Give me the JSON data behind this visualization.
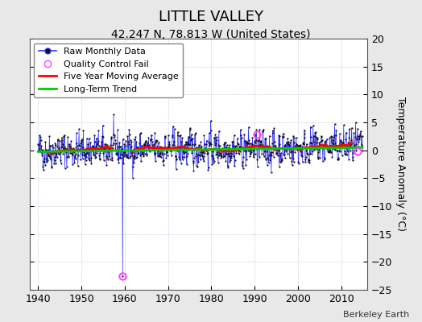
{
  "title": "LITTLE VALLEY",
  "subtitle": "42.247 N, 78.813 W (United States)",
  "ylabel": "Temperature Anomaly (°C)",
  "attribution": "Berkeley Earth",
  "xlim": [
    1938,
    2016
  ],
  "ylim": [
    -25,
    20
  ],
  "yticks": [
    -25,
    -20,
    -15,
    -10,
    -5,
    0,
    5,
    10,
    15,
    20
  ],
  "xticks": [
    1940,
    1950,
    1960,
    1970,
    1980,
    1990,
    2000,
    2010
  ],
  "fig_bg_color": "#e8e8e8",
  "plot_bg_color": "#ffffff",
  "grid_color": "#aaaacc",
  "raw_line_color": "#3333ff",
  "raw_dot_color": "#111111",
  "ma_color": "#ff0000",
  "trend_color": "#00cc00",
  "qc_fail_color": "#ff44ff",
  "seed": 42,
  "n_years": 75,
  "start_year": 1940,
  "anomaly_std": 2.2,
  "trend_slope": 0.008,
  "ma_window": 60,
  "qc_fail_points": [
    [
      1959.5,
      -22.5
    ],
    [
      1990.5,
      2.8
    ],
    [
      2013.8,
      -0.2
    ]
  ],
  "spike_year": 1959.5,
  "spike_value": -22.5,
  "title_fontsize": 13,
  "subtitle_fontsize": 10,
  "label_fontsize": 9,
  "tick_fontsize": 9,
  "legend_fontsize": 8
}
